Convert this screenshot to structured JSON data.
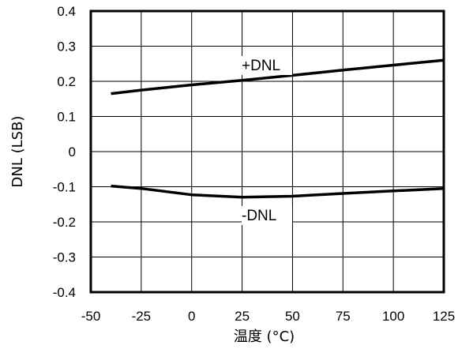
{
  "chart_data": {
    "type": "line",
    "xlabel": "温度 (°C)",
    "ylabel": "DNL (LSB)",
    "xlim": [
      -50,
      125
    ],
    "ylim": [
      -0.4,
      0.4
    ],
    "xticks": [
      "-50",
      "-25",
      "0",
      "25",
      "50",
      "75",
      "100",
      "125"
    ],
    "yticks": [
      "0.4",
      "0.3",
      "0.2",
      "0.1",
      "0",
      "-0.1",
      "-0.2",
      "-0.3",
      "-0.4"
    ],
    "grid": true,
    "series": [
      {
        "name": "+DNL",
        "x": [
          -40,
          -25,
          0,
          25,
          50,
          75,
          100,
          125
        ],
        "y": [
          0.165,
          0.175,
          0.19,
          0.203,
          0.217,
          0.232,
          0.246,
          0.26
        ]
      },
      {
        "name": "-DNL",
        "x": [
          -40,
          -25,
          0,
          25,
          50,
          75,
          100,
          125
        ],
        "y": [
          -0.098,
          -0.105,
          -0.123,
          -0.13,
          -0.127,
          -0.119,
          -0.112,
          -0.105
        ]
      }
    ]
  }
}
